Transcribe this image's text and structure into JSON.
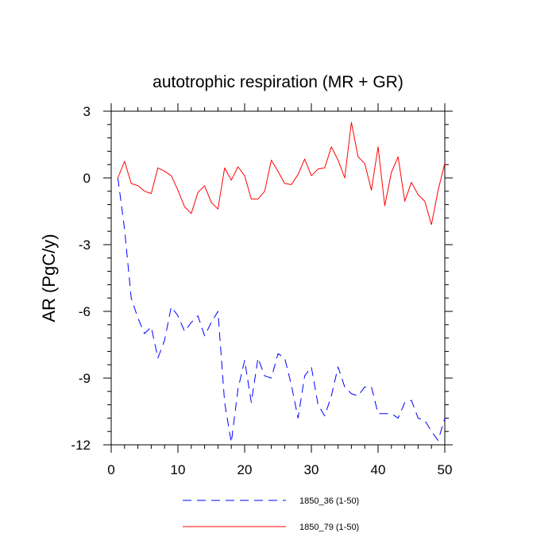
{
  "chart_data": {
    "type": "line",
    "title": "autotrophic respiration (MR + GR)",
    "xlabel": "",
    "ylabel": "AR  (PgC/y)",
    "xlim": [
      0,
      50
    ],
    "ylim": [
      -12,
      3
    ],
    "xticks": [
      0,
      10,
      20,
      30,
      40,
      50
    ],
    "xtick_labels": [
      "0",
      "10",
      "20",
      "30",
      "40",
      "50"
    ],
    "yticks": [
      3,
      0,
      -3,
      -6,
      -9,
      -12
    ],
    "ytick_labels": [
      "3",
      "0",
      "-3",
      "-6",
      "-9",
      "-12"
    ],
    "legend_position": "bottom-center",
    "series": [
      {
        "name": "1850_36 (1-50)",
        "color": "#0000ff",
        "style": "dashed",
        "x": [
          1,
          2,
          3,
          4,
          5,
          6,
          7,
          8,
          9,
          10,
          11,
          12,
          13,
          14,
          15,
          16,
          17,
          18,
          19,
          20,
          21,
          22,
          23,
          24,
          25,
          26,
          27,
          28,
          29,
          30,
          31,
          32,
          33,
          34,
          35,
          36,
          37,
          38,
          39,
          40,
          41,
          42,
          43,
          44,
          45,
          46,
          47,
          48,
          49,
          50
        ],
        "values": [
          0.0,
          -2.3,
          -5.4,
          -6.3,
          -7.0,
          -6.7,
          -8.1,
          -7.3,
          -5.8,
          -6.2,
          -6.9,
          -6.5,
          -6.2,
          -7.1,
          -6.5,
          -6.0,
          -10.1,
          -11.9,
          -9.5,
          -8.2,
          -10.1,
          -8.1,
          -8.9,
          -9.0,
          -7.9,
          -8.1,
          -9.3,
          -10.8,
          -8.9,
          -8.5,
          -10.2,
          -10.7,
          -9.8,
          -8.5,
          -9.4,
          -9.7,
          -9.8,
          -9.4,
          -9.4,
          -10.6,
          -10.6,
          -10.6,
          -10.8,
          -10.1,
          -10.0,
          -10.8,
          -10.9,
          -11.4,
          -11.8,
          -10.8
        ]
      },
      {
        "name": "1850_79 (1-50)",
        "color": "#ff0000",
        "style": "solid",
        "x": [
          1,
          2,
          3,
          4,
          5,
          6,
          7,
          8,
          9,
          10,
          11,
          12,
          13,
          14,
          15,
          16,
          17,
          18,
          19,
          20,
          21,
          22,
          23,
          24,
          25,
          26,
          27,
          28,
          29,
          30,
          31,
          32,
          33,
          34,
          35,
          36,
          37,
          38,
          39,
          40,
          41,
          42,
          43,
          44,
          45,
          46,
          47,
          48,
          49,
          50
        ],
        "values": [
          0.0,
          0.75,
          -0.25,
          -0.35,
          -0.6,
          -0.7,
          0.45,
          0.3,
          0.1,
          -0.55,
          -1.3,
          -1.6,
          -0.65,
          -0.35,
          -1.1,
          -1.4,
          0.45,
          -0.1,
          0.5,
          0.1,
          -0.95,
          -0.95,
          -0.6,
          0.8,
          0.3,
          -0.25,
          -0.3,
          0.15,
          0.85,
          0.1,
          0.4,
          0.45,
          1.4,
          0.8,
          0.0,
          2.5,
          0.95,
          0.65,
          -0.55,
          1.4,
          -1.25,
          0.25,
          0.95,
          -1.05,
          -0.2,
          -0.75,
          -1.05,
          -2.1,
          -0.55,
          0.65
        ]
      }
    ]
  }
}
